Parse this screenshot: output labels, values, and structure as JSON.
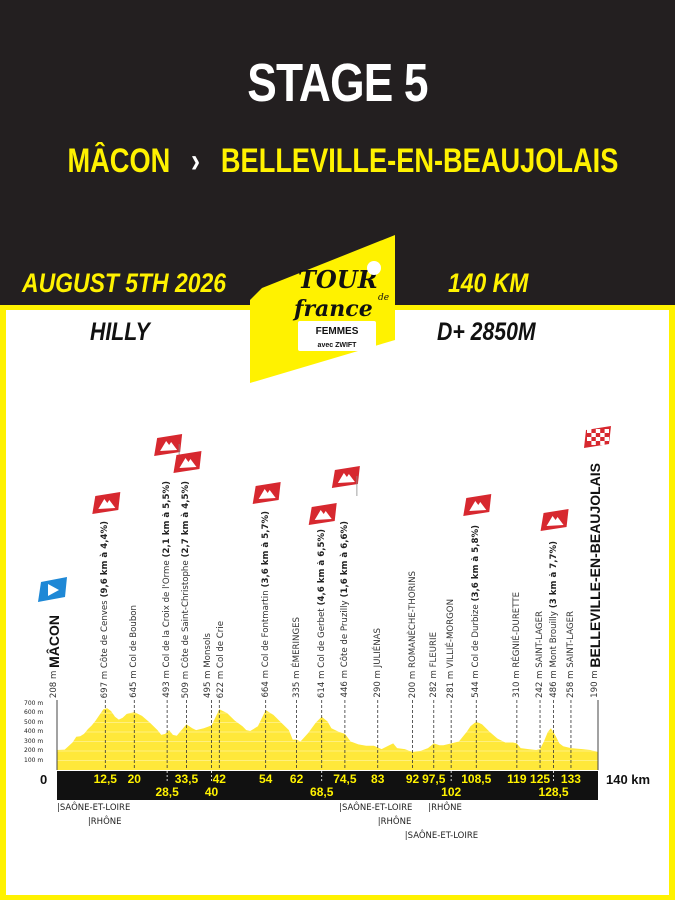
{
  "header": {
    "title": "STAGE 5",
    "start": "MÂCON",
    "separator": "›",
    "finish": "BELLEVILLE-EN-BEAUJOLAIS",
    "date": "AUGUST 5TH 2026",
    "distance": "140 KM",
    "profile_type": "HILLY",
    "elevation_gain": "D+ 2850M"
  },
  "logo": {
    "text": "TOUR de France FEMMES avec ZWIFT"
  },
  "colors": {
    "yellow": "#fff200",
    "dark": "#231f20",
    "kom_red": "#d7282f",
    "start_blue": "#1e88d6"
  },
  "chart_data": {
    "type": "area",
    "xlabel": "",
    "ylabel": "",
    "x_start_label": "0",
    "x_end_label": "140 km",
    "xlim": [
      0,
      140
    ],
    "ylim": [
      0,
      700
    ],
    "y_ticks": [
      "100 m",
      "200 m",
      "300 m",
      "400 m",
      "500 m",
      "600 m",
      "700 m"
    ],
    "profile": [
      [
        0,
        210
      ],
      [
        2,
        215
      ],
      [
        4,
        290
      ],
      [
        5,
        350
      ],
      [
        6,
        355
      ],
      [
        7,
        380
      ],
      [
        8,
        430
      ],
      [
        9,
        470
      ],
      [
        10,
        520
      ],
      [
        11,
        580
      ],
      [
        12,
        640
      ],
      [
        13,
        650
      ],
      [
        14,
        620
      ],
      [
        15,
        560
      ],
      [
        16,
        530
      ],
      [
        17,
        550
      ],
      [
        18,
        590
      ],
      [
        20,
        610
      ],
      [
        22,
        570
      ],
      [
        24,
        500
      ],
      [
        26,
        420
      ],
      [
        27,
        370
      ],
      [
        28,
        380
      ],
      [
        29,
        420
      ],
      [
        30,
        370
      ],
      [
        31,
        360
      ],
      [
        32,
        410
      ],
      [
        33.5,
        480
      ],
      [
        35,
        440
      ],
      [
        36,
        420
      ],
      [
        38,
        440
      ],
      [
        40,
        470
      ],
      [
        42,
        640
      ],
      [
        44,
        600
      ],
      [
        46,
        520
      ],
      [
        48,
        460
      ],
      [
        49,
        420
      ],
      [
        50,
        410
      ],
      [
        52,
        460
      ],
      [
        54,
        630
      ],
      [
        56,
        580
      ],
      [
        58,
        500
      ],
      [
        60,
        420
      ],
      [
        61,
        320
      ],
      [
        62,
        320
      ],
      [
        63,
        300
      ],
      [
        65,
        390
      ],
      [
        67,
        500
      ],
      [
        68.5,
        560
      ],
      [
        70,
        510
      ],
      [
        71,
        440
      ],
      [
        73,
        400
      ],
      [
        74.5,
        380
      ],
      [
        76,
        300
      ],
      [
        78,
        270
      ],
      [
        80,
        255
      ],
      [
        82,
        255
      ],
      [
        84,
        220
      ],
      [
        86,
        260
      ],
      [
        87,
        280
      ],
      [
        88,
        230
      ],
      [
        90,
        220
      ],
      [
        92,
        190
      ],
      [
        94,
        200
      ],
      [
        96,
        230
      ],
      [
        97.5,
        280
      ],
      [
        99,
        260
      ],
      [
        100,
        260
      ],
      [
        102,
        280
      ],
      [
        104,
        300
      ],
      [
        106,
        400
      ],
      [
        107,
        460
      ],
      [
        108.5,
        510
      ],
      [
        110,
        480
      ],
      [
        112,
        400
      ],
      [
        114,
        330
      ],
      [
        116,
        290
      ],
      [
        118,
        290
      ],
      [
        119,
        280
      ],
      [
        120,
        230
      ],
      [
        122,
        220
      ],
      [
        124,
        210
      ],
      [
        125,
        220
      ],
      [
        126,
        300
      ],
      [
        127,
        400
      ],
      [
        127.8,
        440
      ],
      [
        129,
        360
      ],
      [
        130,
        280
      ],
      [
        131,
        250
      ],
      [
        133,
        230
      ],
      [
        136,
        220
      ],
      [
        138,
        210
      ],
      [
        140,
        190
      ]
    ],
    "waypoints": [
      {
        "km": 0,
        "km_label": "",
        "alt": "208 m",
        "name": "MÂCON",
        "climb": "",
        "type": "start"
      },
      {
        "km": 12.5,
        "km_label": "12,5",
        "alt": "697 m",
        "name": "Côte de Cenves",
        "climb": "(9,6 km à 4,4%)",
        "type": "kom"
      },
      {
        "km": 20,
        "km_label": "20",
        "alt": "645 m",
        "name": "Col de Boubon",
        "climb": "",
        "type": "pass"
      },
      {
        "km": 28.5,
        "km_label": "28,5",
        "alt": "493 m",
        "name": "Col de la Croix de l'Orme",
        "climb": "(2,1 km à 5,5%)",
        "type": "kom"
      },
      {
        "km": 33.5,
        "km_label": "33,5",
        "alt": "509 m",
        "name": "Côte de Saint-Christophe",
        "climb": "(2,7 km à 4,5%)",
        "type": "kom"
      },
      {
        "km": 40,
        "km_label": "40",
        "alt": "495 m",
        "name": "Monsols",
        "climb": "",
        "type": "pass"
      },
      {
        "km": 42,
        "km_label": "42",
        "alt": "622 m",
        "name": "Col de Crie",
        "climb": "",
        "type": "pass"
      },
      {
        "km": 54,
        "km_label": "54",
        "alt": "664 m",
        "name": "Col de Fontmartin",
        "climb": "(3,6 km à 5,7%)",
        "type": "kom"
      },
      {
        "km": 62,
        "km_label": "62",
        "alt": "335 m",
        "name": "ÉMERINGES",
        "climb": "",
        "type": "town"
      },
      {
        "km": 68.5,
        "km_label": "68,5",
        "alt": "614 m",
        "name": "Col de Gerbet",
        "climb": "(4,6 km à 6,5%)",
        "type": "kom"
      },
      {
        "km": 74.5,
        "km_label": "74,5",
        "alt": "446 m",
        "name": "Côte de Pruzilly",
        "climb": "(1,6 km à 6,6%)",
        "type": "kom"
      },
      {
        "km": 83,
        "km_label": "83",
        "alt": "290 m",
        "name": "JULIÉNAS",
        "climb": "",
        "type": "town"
      },
      {
        "km": 92,
        "km_label": "92",
        "alt": "200 m",
        "name": "ROMANÈCHE-THORINS",
        "climb": "",
        "type": "town"
      },
      {
        "km": 97.5,
        "km_label": "97,5",
        "alt": "282 m",
        "name": "FLEURIE",
        "climb": "",
        "type": "town"
      },
      {
        "km": 102,
        "km_label": "102",
        "alt": "281 m",
        "name": "VILLIÉ-MORGON",
        "climb": "",
        "type": "town"
      },
      {
        "km": 108.5,
        "km_label": "108,5",
        "alt": "544 m",
        "name": "Col de Durbize",
        "climb": "(3,6 km à 5,8%)",
        "type": "kom"
      },
      {
        "km": 119,
        "km_label": "119",
        "alt": "310 m",
        "name": "RÉGNIÉ-DURETTE",
        "climb": "",
        "type": "town"
      },
      {
        "km": 125,
        "km_label": "125",
        "alt": "242 m",
        "name": "SAINT-LAGER",
        "climb": "",
        "type": "town"
      },
      {
        "km": 128.5,
        "km_label": "128,5",
        "alt": "486 m",
        "name": "Mont Brouilly",
        "climb": "(3 km à 7,7%)",
        "type": "kom"
      },
      {
        "km": 133,
        "km_label": "133",
        "alt": "258 m",
        "name": "SAINT-LAGER",
        "climb": "",
        "type": "town"
      },
      {
        "km": 140,
        "km_label": "",
        "alt": "190 m",
        "name": "BELLEVILLE-EN-BEAUJOLAIS",
        "climb": "",
        "type": "finish"
      }
    ],
    "regions": [
      {
        "km": 0,
        "name": "SAÔNE-ET-LOIRE"
      },
      {
        "km": 8,
        "name": "RHÔNE"
      },
      {
        "km": 73,
        "name": "SAÔNE-ET-LOIRE"
      },
      {
        "km": 83,
        "name": "RHÔNE"
      },
      {
        "km": 94,
        "name": "RHÔNE"
      },
      {
        "km": 90,
        "name": "SAÔNE-ET-LOIRE"
      }
    ]
  }
}
